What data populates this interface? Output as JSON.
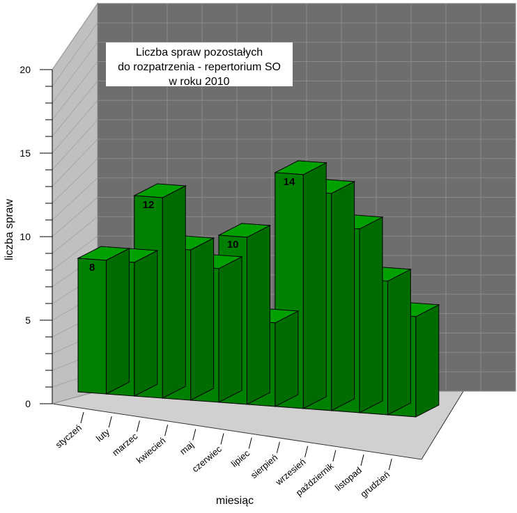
{
  "chart_data": {
    "type": "bar",
    "title": "Liczba spraw pozostałych do rozpatrzenia - repertorium SO w roku 2010",
    "title_lines": [
      "Liczba spraw pozostałych",
      "do rozpatrzenia - repertorium SO",
      "w roku 2010"
    ],
    "xlabel": "miesiąc",
    "ylabel": "liczba spraw",
    "ylim": [
      0,
      20
    ],
    "yticks": [
      "0",
      "5",
      "10",
      "15",
      "20"
    ],
    "categories": [
      "styczeń",
      "luty",
      "marzec",
      "kwiecień",
      "maj",
      "czerwiec",
      "lipiec",
      "sierpień",
      "wrzesień",
      "październik",
      "listopad",
      "grudzień"
    ],
    "values": [
      8,
      8,
      12,
      9,
      8,
      10,
      5,
      14,
      13,
      11,
      8,
      6
    ],
    "grid": true,
    "style": "3d",
    "colors": {
      "bar_front": "#008000",
      "bar_top": "#00a000",
      "bar_side": "#006c00",
      "back_wall": "#6e6e6e",
      "left_wall": "#c0c0c0",
      "floor": "#d0d0d0"
    }
  }
}
